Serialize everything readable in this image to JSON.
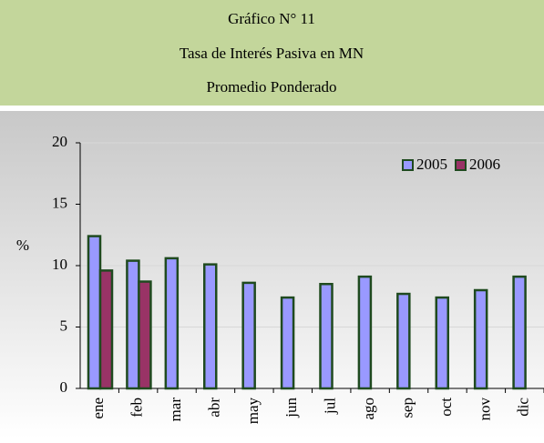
{
  "header": {
    "lines": [
      "Gráfico N° 11",
      "Tasa de Interés Pasiva en MN",
      "Promedio Ponderado"
    ]
  },
  "chart_data": {
    "type": "bar",
    "y_label": "%",
    "categories": [
      "ene",
      "feb",
      "mar",
      "abr",
      "may",
      "jun",
      "jul",
      "ago",
      "sep",
      "oct",
      "nov",
      "dic"
    ],
    "series": [
      {
        "name": "2005",
        "color": "#9999ff",
        "values": [
          12.4,
          10.4,
          10.6,
          10.1,
          8.6,
          7.4,
          8.5,
          9.1,
          7.7,
          7.4,
          8.0,
          9.1
        ]
      },
      {
        "name": "2006",
        "color": "#993366",
        "values": [
          9.6,
          8.7,
          null,
          null,
          null,
          null,
          null,
          null,
          null,
          null,
          null,
          null
        ]
      }
    ],
    "ylim": [
      0,
      20
    ],
    "yticks": [
      0,
      5,
      10,
      15,
      20
    ],
    "grid": true,
    "legend": "top-right"
  }
}
